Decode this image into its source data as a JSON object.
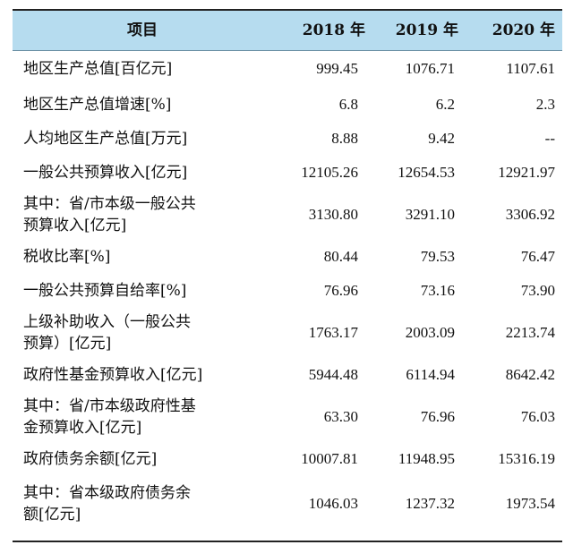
{
  "header": {
    "item": "项目",
    "y2018": "2018 年",
    "y2019": "2019 年",
    "y2020": "2020 年"
  },
  "rows": [
    {
      "label": "地区生产总值[百亿元]",
      "v2018": "999.45",
      "v2019": "1076.71",
      "v2020": "1107.61"
    },
    {
      "label": "地区生产总值增速[%]",
      "v2018": "6.8",
      "v2019": "6.2",
      "v2020": "2.3"
    },
    {
      "label": "人均地区生产总值[万元]",
      "v2018": "8.88",
      "v2019": "9.42",
      "v2020": "--"
    },
    {
      "label": "一般公共预算收入[亿元]",
      "v2018": "12105.26",
      "v2019": "12654.53",
      "v2020": "12921.97"
    },
    {
      "label": "其中：省/市本级一般公共\n预算收入[亿元]",
      "v2018": "3130.80",
      "v2019": "3291.10",
      "v2020": "3306.92"
    },
    {
      "label": "税收比率[%]",
      "v2018": "80.44",
      "v2019": "79.53",
      "v2020": "76.47"
    },
    {
      "label": "一般公共预算自给率[%]",
      "v2018": "76.96",
      "v2019": "73.16",
      "v2020": "73.90"
    },
    {
      "label": "上级补助收入（一般公共\n预算）[亿元]",
      "v2018": "1763.17",
      "v2019": "2003.09",
      "v2020": "2213.74"
    },
    {
      "label": "政府性基金预算收入[亿元]",
      "v2018": "5944.48",
      "v2019": "6114.94",
      "v2020": "8642.42"
    },
    {
      "label": "其中：省/市本级政府性基\n金预算收入[亿元]",
      "v2018": "63.30",
      "v2019": "76.96",
      "v2020": "76.03"
    },
    {
      "label": "政府债务余额[亿元]",
      "v2018": "10007.81",
      "v2019": "11948.95",
      "v2020": "15316.19"
    },
    {
      "label": "其中：省本级政府债务余\n额[亿元]",
      "v2018": "1046.03",
      "v2019": "1237.32",
      "v2020": "1973.54"
    }
  ]
}
